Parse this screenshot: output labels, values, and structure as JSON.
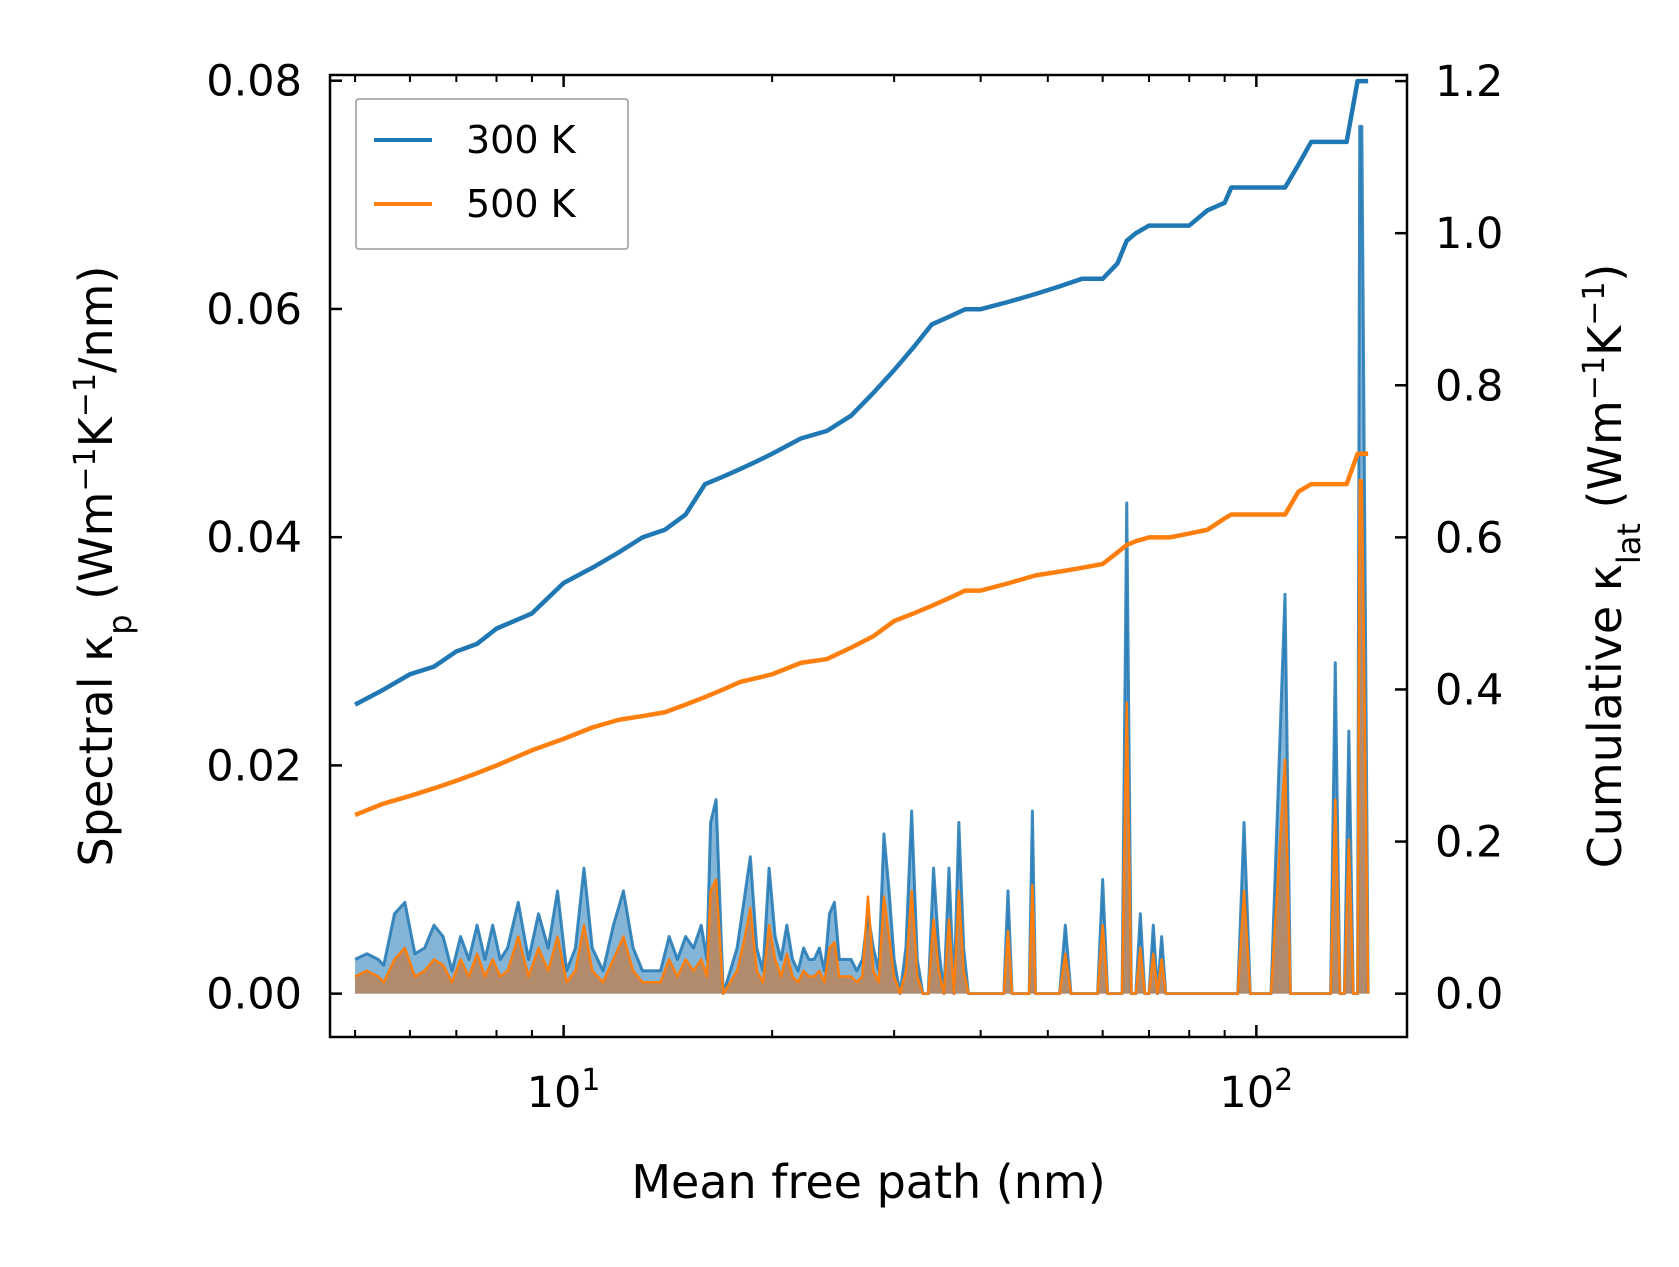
{
  "chart_data": {
    "type": "line",
    "title": "",
    "xlabel": "Mean free path (nm)",
    "xscale": "log",
    "xlim": [
      4.6,
      165
    ],
    "x_ticks": [
      {
        "base": "10",
        "exp": "1",
        "value": 10
      },
      {
        "base": "10",
        "exp": "2",
        "value": 100
      }
    ],
    "ylabel_left": {
      "prefix": "Spectral κ",
      "sub": "p",
      "units_pre": " (Wm",
      "sup1": "−1",
      "mid": "K",
      "sup2": "−1",
      "units_post": "/nm)"
    },
    "ylabel_right": {
      "prefix": "Cumulative κ",
      "sub": "lat",
      "units_pre": " (Wm",
      "sup1": "−1",
      "mid": "K",
      "sup2": "−1",
      "units_post": ")"
    },
    "ylim_left": [
      -0.0038,
      0.0805
    ],
    "ylim_right": [
      -0.057,
      1.208
    ],
    "yticks_left": [
      "0.00",
      "0.02",
      "0.04",
      "0.06",
      "0.08"
    ],
    "yticks_left_values": [
      0,
      0.02,
      0.04,
      0.06,
      0.08
    ],
    "yticks_right": [
      "0.0",
      "0.2",
      "0.4",
      "0.6",
      "0.8",
      "1.0",
      "1.2"
    ],
    "yticks_right_values": [
      0,
      0.2,
      0.4,
      0.6,
      0.8,
      1.0,
      1.2
    ],
    "legend": {
      "placement": "top-left",
      "entries": [
        "300 K",
        "500 K"
      ]
    },
    "colors": {
      "300 K": "#1f77b4",
      "500 K": "#ff7f0e",
      "fill_300K": "#1f77b4",
      "fill_500K": "#ff7f0e",
      "overlap_fill": "#b48866"
    },
    "series": [
      {
        "name": "300 K",
        "axis": "right",
        "kind": "cumulative",
        "x": [
          5.0,
          5.5,
          6.0,
          6.5,
          7.0,
          7.5,
          8.0,
          9.0,
          10.0,
          11.0,
          12.0,
          13.0,
          14.0,
          15.0,
          16.0,
          17.0,
          18.0,
          19.0,
          20.0,
          22.0,
          24.0,
          26.0,
          28.0,
          30.0,
          32.0,
          34.0,
          36.0,
          38.0,
          40.0,
          44.0,
          48.0,
          52.0,
          56.0,
          60.0,
          63.0,
          65.0,
          67.0,
          70.0,
          75.0,
          80.0,
          85.0,
          90.0,
          92.0,
          95.0,
          100.0,
          110.0,
          115.0,
          120.0,
          135.0,
          140.0,
          145.0
        ],
        "y": [
          0.38,
          0.4,
          0.42,
          0.43,
          0.45,
          0.46,
          0.48,
          0.5,
          0.54,
          0.56,
          0.58,
          0.6,
          0.61,
          0.63,
          0.67,
          0.68,
          0.69,
          0.7,
          0.71,
          0.73,
          0.74,
          0.76,
          0.79,
          0.82,
          0.85,
          0.88,
          0.89,
          0.9,
          0.9,
          0.91,
          0.92,
          0.93,
          0.94,
          0.94,
          0.96,
          0.99,
          1.0,
          1.01,
          1.01,
          1.01,
          1.03,
          1.04,
          1.06,
          1.06,
          1.06,
          1.06,
          1.09,
          1.12,
          1.12,
          1.2,
          1.2
        ]
      },
      {
        "name": "500 K",
        "axis": "right",
        "kind": "cumulative",
        "x": [
          5.0,
          5.5,
          6.0,
          6.5,
          7.0,
          7.5,
          8.0,
          9.0,
          10.0,
          11.0,
          12.0,
          13.0,
          14.0,
          15.0,
          16.0,
          17.0,
          18.0,
          19.0,
          20.0,
          22.0,
          24.0,
          26.0,
          28.0,
          30.0,
          32.0,
          34.0,
          36.0,
          38.0,
          40.0,
          44.0,
          48.0,
          52.0,
          56.0,
          60.0,
          63.0,
          65.0,
          67.0,
          70.0,
          75.0,
          80.0,
          85.0,
          90.0,
          92.0,
          95.0,
          100.0,
          110.0,
          115.0,
          120.0,
          135.0,
          140.0,
          145.0
        ],
        "y": [
          0.235,
          0.25,
          0.26,
          0.27,
          0.28,
          0.29,
          0.3,
          0.32,
          0.335,
          0.35,
          0.36,
          0.365,
          0.37,
          0.38,
          0.39,
          0.4,
          0.41,
          0.415,
          0.42,
          0.435,
          0.44,
          0.455,
          0.47,
          0.49,
          0.5,
          0.51,
          0.52,
          0.53,
          0.53,
          0.54,
          0.55,
          0.555,
          0.56,
          0.565,
          0.58,
          0.59,
          0.595,
          0.6,
          0.6,
          0.605,
          0.61,
          0.625,
          0.63,
          0.63,
          0.63,
          0.63,
          0.66,
          0.67,
          0.67,
          0.71,
          0.71
        ]
      },
      {
        "name": "300 K",
        "axis": "left",
        "kind": "spectral",
        "x": [
          5.0,
          5.2,
          5.4,
          5.5,
          5.7,
          5.9,
          6.1,
          6.3,
          6.5,
          6.7,
          6.9,
          7.1,
          7.3,
          7.5,
          7.7,
          7.9,
          8.1,
          8.3,
          8.6,
          8.9,
          9.2,
          9.5,
          9.8,
          10.1,
          10.4,
          10.7,
          11.0,
          11.4,
          11.8,
          12.2,
          12.6,
          13.0,
          13.4,
          13.8,
          14.2,
          14.6,
          15.0,
          15.4,
          15.8,
          16.1,
          16.3,
          16.6,
          17.0,
          17.4,
          17.8,
          18.2,
          18.6,
          19.0,
          19.4,
          19.8,
          20.2,
          20.6,
          21.0,
          21.4,
          21.8,
          22.2,
          22.6,
          23.0,
          23.4,
          23.8,
          24.2,
          24.6,
          25.0,
          25.5,
          26.0,
          26.5,
          27.0,
          27.5,
          28.0,
          28.5,
          29.0,
          29.5,
          30.0,
          30.6,
          31.2,
          31.8,
          32.4,
          33.0,
          33.6,
          34.2,
          34.8,
          35.4,
          36.0,
          36.6,
          37.2,
          37.8,
          38.4,
          39.0,
          39.6,
          40.2,
          40.8,
          41.4,
          42.0,
          42.6,
          43.2,
          43.8,
          44.4,
          45.0,
          46.0,
          47.0,
          47.5,
          48.0,
          49.0,
          50.0,
          51.0,
          52.0,
          53.0,
          54.0,
          55.0,
          56.0,
          57.0,
          58.0,
          59.0,
          60.0,
          61.0,
          62.0,
          63.0,
          64.0,
          65.0,
          66.0,
          67.0,
          68.0,
          69.0,
          70.0,
          71.0,
          72.0,
          73.0,
          74.0,
          75.0,
          76.0,
          78.0,
          80.0,
          82.0,
          84.0,
          86.0,
          88.0,
          90.0,
          92.0,
          94.0,
          96.0,
          98.0,
          100.0,
          105.0,
          110.0,
          112.0,
          114.0,
          116.0,
          118.0,
          120.0,
          122.0,
          124.0,
          126.0,
          128.0,
          130.0,
          132.0,
          134.0,
          136.0,
          138.0,
          139.0,
          140.0,
          141.0,
          142.0,
          145.0
        ],
        "y": [
          0.003,
          0.0035,
          0.003,
          0.0025,
          0.007,
          0.008,
          0.0035,
          0.004,
          0.006,
          0.005,
          0.002,
          0.005,
          0.003,
          0.006,
          0.003,
          0.006,
          0.003,
          0.004,
          0.008,
          0.003,
          0.007,
          0.004,
          0.009,
          0.002,
          0.004,
          0.011,
          0.004,
          0.002,
          0.006,
          0.009,
          0.004,
          0.002,
          0.002,
          0.002,
          0.005,
          0.003,
          0.005,
          0.004,
          0.006,
          0.003,
          0.015,
          0.017,
          0.0,
          0.002,
          0.004,
          0.008,
          0.012,
          0.004,
          0.002,
          0.011,
          0.005,
          0.003,
          0.006,
          0.003,
          0.002,
          0.004,
          0.003,
          0.003,
          0.004,
          0.002,
          0.007,
          0.008,
          0.003,
          0.003,
          0.003,
          0.002,
          0.003,
          0.007,
          0.004,
          0.002,
          0.014,
          0.009,
          0.003,
          0.0,
          0.004,
          0.016,
          0.003,
          0.0,
          0.0,
          0.011,
          0.004,
          0.0,
          0.011,
          0.0,
          0.015,
          0.004,
          0.0,
          0.0,
          0.0,
          0.0,
          0.0,
          0.0,
          0.0,
          0.0,
          0.0,
          0.009,
          0.0,
          0.0,
          0.0,
          0.0,
          0.016,
          0.0,
          0.0,
          0.0,
          0.0,
          0.0,
          0.006,
          0.0,
          0.0,
          0.0,
          0.0,
          0.0,
          0.0,
          0.01,
          0.0,
          0.0,
          0.0,
          0.0,
          0.043,
          0.0,
          0.0,
          0.007,
          0.0,
          0.0,
          0.006,
          0.0,
          0.005,
          0.0,
          0.0,
          0.0,
          0.0,
          0.0,
          0.0,
          0.0,
          0.0,
          0.0,
          0.0,
          0.0,
          0.0,
          0.015,
          0.0,
          0.0,
          0.0,
          0.035,
          0.0,
          0.0,
          0.0,
          0.0,
          0.0,
          0.0,
          0.0,
          0.0,
          0.0,
          0.029,
          0.0,
          0.0,
          0.023,
          0.0,
          0.0,
          0.0,
          0.076,
          0.076,
          0.0
        ]
      },
      {
        "name": "500 K",
        "axis": "left",
        "kind": "spectral",
        "x": [
          5.0,
          5.2,
          5.4,
          5.5,
          5.7,
          5.9,
          6.1,
          6.3,
          6.5,
          6.7,
          6.9,
          7.1,
          7.3,
          7.5,
          7.7,
          7.9,
          8.1,
          8.3,
          8.6,
          8.9,
          9.2,
          9.5,
          9.8,
          10.1,
          10.4,
          10.7,
          11.0,
          11.4,
          11.8,
          12.2,
          12.6,
          13.0,
          13.4,
          13.8,
          14.2,
          14.6,
          15.0,
          15.4,
          15.8,
          16.1,
          16.3,
          16.6,
          17.0,
          17.4,
          17.8,
          18.2,
          18.6,
          19.0,
          19.4,
          19.8,
          20.2,
          20.6,
          21.0,
          21.4,
          21.8,
          22.2,
          22.6,
          23.0,
          23.4,
          23.8,
          24.2,
          24.6,
          25.0,
          25.5,
          26.0,
          26.5,
          27.0,
          27.5,
          28.0,
          28.5,
          29.0,
          29.5,
          30.0,
          30.6,
          31.2,
          31.8,
          32.4,
          33.0,
          33.6,
          34.2,
          34.8,
          35.4,
          36.0,
          36.6,
          37.2,
          37.8,
          38.4,
          39.0,
          39.6,
          40.2,
          40.8,
          41.4,
          42.0,
          42.6,
          43.2,
          43.8,
          44.4,
          45.0,
          46.0,
          47.0,
          47.5,
          48.0,
          49.0,
          50.0,
          51.0,
          52.0,
          53.0,
          54.0,
          55.0,
          56.0,
          57.0,
          58.0,
          59.0,
          60.0,
          61.0,
          62.0,
          63.0,
          64.0,
          65.0,
          66.0,
          67.0,
          68.0,
          69.0,
          70.0,
          71.0,
          72.0,
          73.0,
          74.0,
          75.0,
          76.0,
          78.0,
          80.0,
          82.0,
          84.0,
          86.0,
          88.0,
          90.0,
          92.0,
          94.0,
          96.0,
          98.0,
          100.0,
          105.0,
          110.0,
          112.0,
          114.0,
          116.0,
          118.0,
          120.0,
          122.0,
          124.0,
          126.0,
          128.0,
          130.0,
          132.0,
          134.0,
          136.0,
          138.0,
          139.0,
          140.0,
          141.0,
          142.0,
          145.0
        ],
        "y": [
          0.0015,
          0.002,
          0.0015,
          0.001,
          0.003,
          0.004,
          0.0015,
          0.002,
          0.003,
          0.0025,
          0.001,
          0.003,
          0.0015,
          0.0035,
          0.0015,
          0.003,
          0.0015,
          0.002,
          0.005,
          0.0015,
          0.004,
          0.002,
          0.005,
          0.001,
          0.002,
          0.006,
          0.002,
          0.001,
          0.003,
          0.005,
          0.002,
          0.001,
          0.001,
          0.001,
          0.003,
          0.0015,
          0.003,
          0.002,
          0.003,
          0.0015,
          0.009,
          0.01,
          0.0,
          0.001,
          0.002,
          0.0045,
          0.0075,
          0.002,
          0.001,
          0.006,
          0.003,
          0.0015,
          0.0035,
          0.0015,
          0.001,
          0.002,
          0.0015,
          0.0015,
          0.002,
          0.001,
          0.004,
          0.0045,
          0.0015,
          0.0015,
          0.0015,
          0.001,
          0.0015,
          0.0085,
          0.002,
          0.001,
          0.0085,
          0.005,
          0.0015,
          0.0,
          0.002,
          0.009,
          0.0015,
          0.0,
          0.0,
          0.0065,
          0.002,
          0.0,
          0.0065,
          0.0,
          0.009,
          0.002,
          0.0,
          0.0,
          0.0,
          0.0,
          0.0,
          0.0,
          0.0,
          0.0,
          0.0,
          0.0055,
          0.0,
          0.0,
          0.0,
          0.0,
          0.0095,
          0.0,
          0.0,
          0.0,
          0.0,
          0.0,
          0.0035,
          0.0,
          0.0,
          0.0,
          0.0,
          0.0,
          0.0,
          0.006,
          0.0,
          0.0,
          0.0,
          0.0,
          0.0255,
          0.0,
          0.0,
          0.004,
          0.0,
          0.0,
          0.0035,
          0.0,
          0.003,
          0.0,
          0.0,
          0.0,
          0.0,
          0.0,
          0.0,
          0.0,
          0.0,
          0.0,
          0.0,
          0.0,
          0.0,
          0.009,
          0.0,
          0.0,
          0.0,
          0.0205,
          0.0,
          0.0,
          0.0,
          0.0,
          0.0,
          0.0,
          0.0,
          0.0,
          0.0,
          0.017,
          0.0,
          0.0,
          0.0135,
          0.0,
          0.0,
          0.0,
          0.045,
          0.045,
          0.0
        ]
      }
    ]
  }
}
